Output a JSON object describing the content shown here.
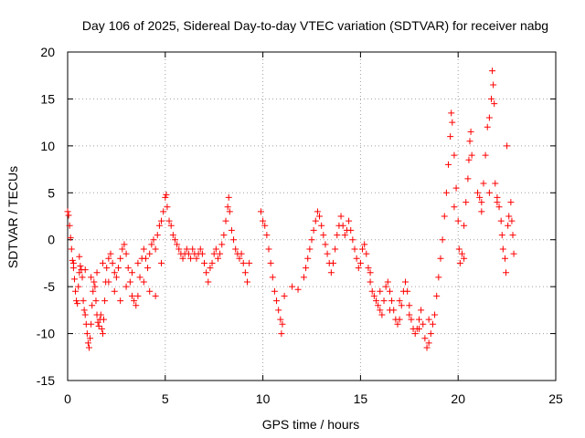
{
  "chart_data": {
    "type": "scatter",
    "title": "Day 106 of 2025, Sidereal Day-to-day VTEC variation (SDTVAR) for receiver nabg",
    "xlabel": "GPS time / hours",
    "ylabel": "SDTVAR / TECUs",
    "xlim": [
      0,
      25
    ],
    "ylim": [
      -15,
      20
    ],
    "x_ticks": [
      0,
      5,
      10,
      15,
      20,
      25
    ],
    "y_ticks": [
      -15,
      -10,
      -5,
      0,
      5,
      10,
      15,
      20
    ],
    "x_tick_labels": [
      "0",
      "5",
      "10",
      "15",
      "20",
      "25"
    ],
    "y_tick_labels": [
      "-15",
      "-10",
      "-5",
      "0",
      "5",
      "10",
      "15",
      "20"
    ],
    "grid": true,
    "marker": "+",
    "color": "#ff0000",
    "series": [
      {
        "name": "SDTVAR",
        "points": [
          [
            0.0,
            3.0
          ],
          [
            0.05,
            2.6
          ],
          [
            0.1,
            1.5
          ],
          [
            0.15,
            0.2
          ],
          [
            0.2,
            -1.0
          ],
          [
            0.25,
            -2.2
          ],
          [
            0.3,
            -3.0
          ],
          [
            0.35,
            -4.2
          ],
          [
            0.4,
            -5.5
          ],
          [
            0.45,
            -6.5
          ],
          [
            0.5,
            -6.8
          ],
          [
            0.55,
            -5.0
          ],
          [
            0.6,
            -3.5
          ],
          [
            0.65,
            -2.8
          ],
          [
            0.7,
            -3.2
          ],
          [
            0.75,
            -4.0
          ],
          [
            0.8,
            -6.5
          ],
          [
            0.85,
            -7.5
          ],
          [
            0.9,
            -8.0
          ],
          [
            0.95,
            -9.0
          ],
          [
            1.0,
            -10.0
          ],
          [
            1.05,
            -11.0
          ],
          [
            1.1,
            -11.5
          ],
          [
            1.15,
            -10.5
          ],
          [
            1.2,
            -9.0
          ],
          [
            1.25,
            -7.0
          ],
          [
            1.3,
            -5.5
          ],
          [
            1.35,
            -4.5
          ],
          [
            1.4,
            -5.0
          ],
          [
            1.45,
            -6.5
          ],
          [
            1.5,
            -8.0
          ],
          [
            1.55,
            -8.8
          ],
          [
            1.6,
            -9.2
          ],
          [
            1.65,
            -8.5
          ],
          [
            1.7,
            -8.0
          ],
          [
            1.75,
            -9.5
          ],
          [
            1.8,
            -10.0
          ],
          [
            1.85,
            -8.5
          ],
          [
            1.9,
            -6.5
          ],
          [
            1.95,
            -4.5
          ],
          [
            2.0,
            -3.0
          ],
          [
            2.1,
            -2.0
          ],
          [
            2.2,
            -1.5
          ],
          [
            2.3,
            -2.5
          ],
          [
            2.4,
            -3.5
          ],
          [
            2.5,
            -4.0
          ],
          [
            2.6,
            -3.0
          ],
          [
            2.7,
            -2.0
          ],
          [
            2.8,
            -1.0
          ],
          [
            2.9,
            -0.5
          ],
          [
            3.0,
            -1.5
          ],
          [
            3.1,
            -3.0
          ],
          [
            3.2,
            -4.5
          ],
          [
            3.3,
            -6.0
          ],
          [
            3.4,
            -6.5
          ],
          [
            3.5,
            -7.0
          ],
          [
            3.6,
            -6.0
          ],
          [
            3.7,
            -4.0
          ],
          [
            3.8,
            -2.0
          ],
          [
            3.9,
            -1.0
          ],
          [
            4.0,
            -2.0
          ],
          [
            4.1,
            -3.0
          ],
          [
            4.2,
            -1.5
          ],
          [
            4.3,
            -0.5
          ],
          [
            4.4,
            0.0
          ],
          [
            4.5,
            -1.0
          ],
          [
            4.6,
            0.5
          ],
          [
            4.7,
            1.5
          ],
          [
            4.8,
            2.0
          ],
          [
            4.9,
            3.0
          ],
          [
            5.0,
            4.5
          ],
          [
            5.05,
            4.8
          ],
          [
            5.1,
            3.5
          ],
          [
            5.2,
            2.0
          ],
          [
            5.3,
            1.5
          ],
          [
            5.4,
            0.5
          ],
          [
            5.5,
            0.0
          ],
          [
            5.6,
            -0.5
          ],
          [
            5.7,
            -1.0
          ],
          [
            5.8,
            -1.5
          ],
          [
            5.9,
            -2.0
          ],
          [
            6.0,
            -1.5
          ],
          [
            6.1,
            -1.0
          ],
          [
            6.2,
            -1.5
          ],
          [
            6.3,
            -2.0
          ],
          [
            6.4,
            -1.0
          ],
          [
            6.5,
            -1.5
          ],
          [
            6.6,
            -2.0
          ],
          [
            6.7,
            -1.5
          ],
          [
            6.8,
            -1.0
          ],
          [
            6.9,
            -1.5
          ],
          [
            7.0,
            -2.5
          ],
          [
            7.1,
            -3.5
          ],
          [
            7.2,
            -4.5
          ],
          [
            7.3,
            -3.0
          ],
          [
            7.4,
            -2.5
          ],
          [
            7.5,
            -1.5
          ],
          [
            7.6,
            -1.0
          ],
          [
            7.7,
            -2.0
          ],
          [
            7.8,
            -1.5
          ],
          [
            7.9,
            -0.5
          ],
          [
            8.0,
            0.5
          ],
          [
            8.1,
            2.0
          ],
          [
            8.2,
            3.5
          ],
          [
            8.25,
            4.5
          ],
          [
            8.3,
            3.0
          ],
          [
            8.4,
            1.0
          ],
          [
            8.5,
            0.0
          ],
          [
            8.6,
            -1.0
          ],
          [
            8.7,
            -1.5
          ],
          [
            8.8,
            -2.0
          ],
          [
            8.9,
            -1.5
          ],
          [
            9.0,
            -2.5
          ],
          [
            9.1,
            -3.5
          ],
          [
            9.2,
            -4.5
          ],
          [
            9.3,
            -2.5
          ],
          [
            9.9,
            3.0
          ],
          [
            10.0,
            2.0
          ],
          [
            10.1,
            1.5
          ],
          [
            10.2,
            0.5
          ],
          [
            10.3,
            -1.0
          ],
          [
            10.4,
            -2.5
          ],
          [
            10.5,
            -4.0
          ],
          [
            10.6,
            -5.5
          ],
          [
            10.7,
            -6.5
          ],
          [
            10.8,
            -7.5
          ],
          [
            10.9,
            -8.5
          ],
          [
            10.95,
            -10.0
          ],
          [
            11.0,
            -9.0
          ],
          [
            11.1,
            -6.0
          ],
          [
            11.5,
            -5.0
          ],
          [
            11.8,
            -5.3
          ],
          [
            12.1,
            -4.0
          ],
          [
            12.2,
            -3.0
          ],
          [
            12.3,
            -2.0
          ],
          [
            12.4,
            -1.0
          ],
          [
            12.5,
            0.0
          ],
          [
            12.6,
            1.0
          ],
          [
            12.7,
            2.0
          ],
          [
            12.8,
            3.0
          ],
          [
            12.9,
            2.5
          ],
          [
            13.0,
            1.5
          ],
          [
            13.1,
            0.5
          ],
          [
            13.2,
            -0.5
          ],
          [
            13.3,
            -1.5
          ],
          [
            13.4,
            -2.5
          ],
          [
            13.5,
            -3.5
          ],
          [
            13.6,
            -2.5
          ],
          [
            13.7,
            -1.0
          ],
          [
            13.8,
            0.5
          ],
          [
            13.9,
            1.5
          ],
          [
            14.0,
            2.5
          ],
          [
            14.1,
            1.5
          ],
          [
            14.2,
            0.5
          ],
          [
            14.3,
            1.0
          ],
          [
            14.4,
            2.0
          ],
          [
            14.5,
            1.0
          ],
          [
            14.6,
            0.0
          ],
          [
            14.7,
            -1.0
          ],
          [
            14.8,
            -2.0
          ],
          [
            14.9,
            -3.0
          ],
          [
            15.0,
            -2.5
          ],
          [
            15.1,
            -1.0
          ],
          [
            15.2,
            -0.5
          ],
          [
            15.3,
            -1.5
          ],
          [
            15.4,
            -3.0
          ],
          [
            15.5,
            -4.5
          ],
          [
            15.6,
            -5.5
          ],
          [
            15.7,
            -6.0
          ],
          [
            15.8,
            -6.5
          ],
          [
            15.9,
            -7.0
          ],
          [
            16.0,
            -7.5
          ],
          [
            16.1,
            -8.0
          ],
          [
            16.2,
            -6.5
          ],
          [
            16.3,
            -5.0
          ],
          [
            16.4,
            -4.5
          ],
          [
            16.5,
            -5.5
          ],
          [
            16.6,
            -6.5
          ],
          [
            16.7,
            -7.5
          ],
          [
            16.8,
            -8.5
          ],
          [
            16.9,
            -9.0
          ],
          [
            17.0,
            -8.5
          ],
          [
            17.1,
            -7.0
          ],
          [
            17.2,
            -5.5
          ],
          [
            17.3,
            -4.5
          ],
          [
            17.4,
            -5.5
          ],
          [
            17.5,
            -7.0
          ],
          [
            17.6,
            -8.5
          ],
          [
            17.7,
            -9.5
          ],
          [
            17.8,
            -10.0
          ],
          [
            17.9,
            -9.5
          ],
          [
            18.0,
            -8.5
          ],
          [
            18.1,
            -7.5
          ],
          [
            18.2,
            -9.0
          ],
          [
            18.3,
            -10.5
          ],
          [
            18.4,
            -11.5
          ],
          [
            18.5,
            -11.0
          ],
          [
            18.6,
            -10.0
          ],
          [
            18.7,
            -9.0
          ],
          [
            18.8,
            -8.0
          ],
          [
            18.9,
            -6.0
          ],
          [
            19.0,
            -4.0
          ],
          [
            19.1,
            -2.0
          ],
          [
            19.2,
            0.0
          ],
          [
            19.3,
            2.5
          ],
          [
            19.4,
            5.0
          ],
          [
            19.5,
            8.0
          ],
          [
            19.6,
            11.0
          ],
          [
            19.65,
            13.5
          ],
          [
            19.7,
            12.5
          ],
          [
            19.8,
            9.0
          ],
          [
            19.9,
            5.5
          ],
          [
            20.0,
            2.0
          ],
          [
            20.05,
            -1.0
          ],
          [
            20.1,
            -2.5
          ],
          [
            20.2,
            -1.5
          ],
          [
            20.3,
            1.5
          ],
          [
            20.4,
            4.0
          ],
          [
            20.5,
            6.5
          ],
          [
            20.55,
            8.5
          ],
          [
            20.6,
            10.5
          ],
          [
            20.65,
            11.5
          ],
          [
            20.7,
            9.0
          ],
          [
            21.0,
            5.0
          ],
          [
            21.1,
            4.5
          ],
          [
            21.2,
            4.0
          ],
          [
            21.3,
            6.0
          ],
          [
            21.4,
            9.0
          ],
          [
            21.5,
            12.0
          ],
          [
            21.6,
            13.0
          ],
          [
            21.7,
            15.0
          ],
          [
            21.75,
            18.0
          ],
          [
            21.8,
            16.5
          ],
          [
            21.85,
            14.5
          ],
          [
            21.9,
            6.0
          ],
          [
            22.0,
            4.5
          ],
          [
            22.1,
            3.5
          ],
          [
            22.2,
            2.0
          ],
          [
            22.25,
            0.5
          ],
          [
            22.3,
            -1.0
          ],
          [
            22.4,
            -2.0
          ],
          [
            22.45,
            -3.5
          ],
          [
            22.5,
            10.0
          ],
          [
            22.55,
            1.5
          ],
          [
            22.6,
            2.5
          ],
          [
            22.7,
            4.0
          ],
          [
            22.75,
            2.0
          ],
          [
            22.8,
            0.5
          ],
          [
            22.85,
            -1.5
          ],
          [
            0.3,
            -2.5
          ],
          [
            0.6,
            -1.8
          ],
          [
            0.9,
            -3.2
          ],
          [
            1.2,
            -4.0
          ],
          [
            1.5,
            -3.5
          ],
          [
            1.8,
            -2.5
          ],
          [
            2.1,
            -4.5
          ],
          [
            2.4,
            -5.5
          ],
          [
            2.7,
            -6.5
          ],
          [
            3.0,
            -5.0
          ],
          [
            3.3,
            -3.5
          ],
          [
            3.6,
            -2.5
          ],
          [
            3.9,
            -4.5
          ],
          [
            4.2,
            -5.5
          ],
          [
            4.5,
            -6.0
          ],
          [
            4.8,
            -2.5
          ],
          [
            15.5,
            -3.5
          ],
          [
            16.0,
            -5.5
          ],
          [
            16.5,
            -7.5
          ],
          [
            17.0,
            -6.5
          ],
          [
            17.5,
            -8.0
          ],
          [
            18.0,
            -9.5
          ],
          [
            18.5,
            -8.5
          ],
          [
            19.8,
            3.5
          ],
          [
            20.3,
            -2.0
          ],
          [
            21.2,
            3.0
          ],
          [
            21.6,
            5.0
          ],
          [
            22.0,
            4.0
          ]
        ]
      }
    ]
  }
}
